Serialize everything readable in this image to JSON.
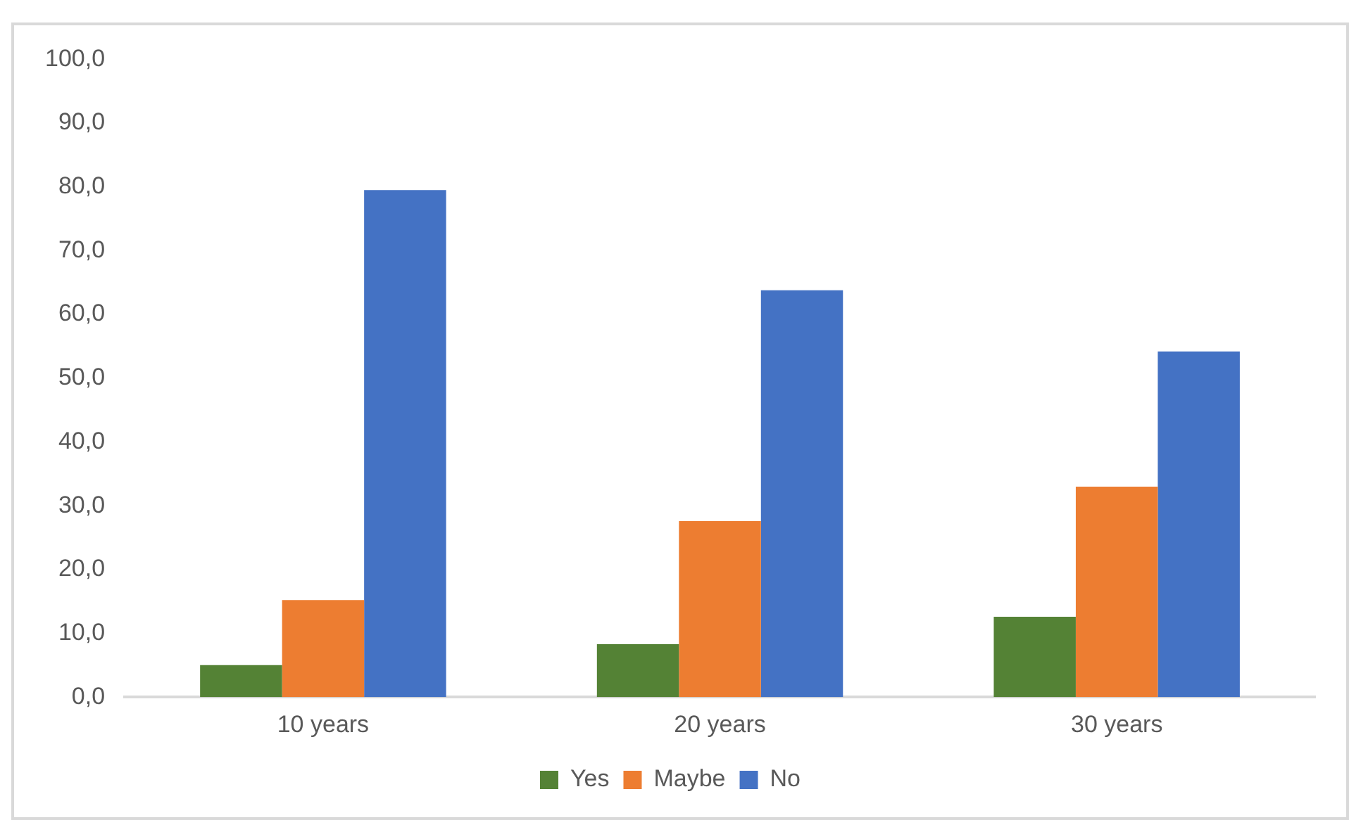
{
  "chart_data": {
    "type": "bar",
    "categories": [
      "10 years",
      "20 years",
      "30 years"
    ],
    "series": [
      {
        "name": "Yes",
        "color": "#548235",
        "values": [
          5.0,
          8.3,
          12.6
        ]
      },
      {
        "name": "Maybe",
        "color": "#ed7d31",
        "values": [
          15.2,
          27.6,
          33.0
        ]
      },
      {
        "name": "No",
        "color": "#4472c4",
        "values": [
          79.5,
          63.8,
          54.2
        ]
      }
    ],
    "ylim": [
      0,
      100
    ],
    "yticks": [
      {
        "value": 0,
        "label": "0,0"
      },
      {
        "value": 10,
        "label": "10,0"
      },
      {
        "value": 20,
        "label": "20,0"
      },
      {
        "value": 30,
        "label": "30,0"
      },
      {
        "value": 40,
        "label": "40,0"
      },
      {
        "value": 50,
        "label": "50,0"
      },
      {
        "value": 60,
        "label": "60,0"
      },
      {
        "value": 70,
        "label": "70,0"
      },
      {
        "value": 80,
        "label": "80,0"
      },
      {
        "value": 90,
        "label": "90,0"
      },
      {
        "value": 100,
        "label": "100,0"
      }
    ],
    "grid": false,
    "legend": "bottom"
  }
}
